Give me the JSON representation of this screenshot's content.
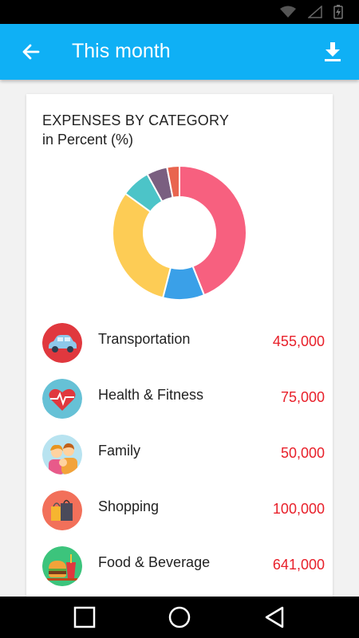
{
  "app_bar": {
    "title": "This month",
    "back_icon": "arrow-left-icon",
    "download_icon": "download-icon",
    "color": "#0fb0f5"
  },
  "status_bar": {
    "icons": [
      "wifi-icon",
      "signal-icon",
      "battery-charging-icon"
    ]
  },
  "card": {
    "title": "EXPENSES BY CATEGORY",
    "subtitle": "in Percent (%)"
  },
  "chart_data": {
    "type": "pie",
    "donut": true,
    "title": "EXPENSES BY CATEGORY",
    "subtitle": "in Percent (%)",
    "slices": [
      {
        "value": 44,
        "color": "#f7607f"
      },
      {
        "value": 10,
        "color": "#3aa0e8"
      },
      {
        "value": 31,
        "color": "#fdcc55"
      },
      {
        "value": 7,
        "color": "#4cc4c8"
      },
      {
        "value": 5,
        "color": "#7a5f80"
      },
      {
        "value": 3,
        "color": "#e9654f"
      }
    ]
  },
  "categories": [
    {
      "label": "Transportation",
      "amount": "455,000",
      "icon": "car-icon"
    },
    {
      "label": "Health & Fitness",
      "amount": "75,000",
      "icon": "heart-pulse-icon"
    },
    {
      "label": "Family",
      "amount": "50,000",
      "icon": "family-icon"
    },
    {
      "label": "Shopping",
      "amount": "100,000",
      "icon": "shopping-bag-icon"
    },
    {
      "label": "Food & Beverage",
      "amount": "641,000",
      "icon": "burger-drink-icon"
    }
  ],
  "colors": {
    "amount": "#e8202a"
  },
  "nav_bar": {
    "icons": [
      "recents-square-icon",
      "home-circle-icon",
      "back-triangle-icon"
    ]
  }
}
